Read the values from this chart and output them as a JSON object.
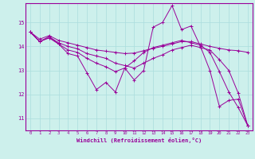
{
  "xlabel": "Windchill (Refroidissement éolien,°C)",
  "bg_color": "#cdf0ec",
  "line_color": "#990099",
  "grid_color": "#aadddd",
  "xlim": [
    -0.5,
    23.5
  ],
  "ylim": [
    10.5,
    15.8
  ],
  "yticks": [
    11,
    12,
    13,
    14,
    15
  ],
  "xticks": [
    0,
    1,
    2,
    3,
    4,
    5,
    6,
    7,
    8,
    9,
    10,
    11,
    12,
    13,
    14,
    15,
    16,
    17,
    18,
    19,
    20,
    21,
    22,
    23
  ],
  "series": [
    [
      14.6,
      14.2,
      14.4,
      14.1,
      13.7,
      13.6,
      12.9,
      12.2,
      12.5,
      12.1,
      13.1,
      12.6,
      13.0,
      14.8,
      15.0,
      15.7,
      14.7,
      14.85,
      14.0,
      13.0,
      11.5,
      11.75,
      11.8,
      10.7
    ],
    [
      14.6,
      14.2,
      14.35,
      14.1,
      13.85,
      13.75,
      13.5,
      13.3,
      13.15,
      12.95,
      13.1,
      13.4,
      13.75,
      13.95,
      14.05,
      14.15,
      14.25,
      14.15,
      14.05,
      13.75,
      12.95,
      12.1,
      11.45,
      10.7
    ],
    [
      14.6,
      14.3,
      14.45,
      14.25,
      14.15,
      14.05,
      13.95,
      13.85,
      13.8,
      13.75,
      13.7,
      13.72,
      13.82,
      13.92,
      14.0,
      14.1,
      14.2,
      14.2,
      14.1,
      14.0,
      13.92,
      13.85,
      13.82,
      13.75
    ],
    [
      14.6,
      14.2,
      14.4,
      14.15,
      14.0,
      13.9,
      13.7,
      13.6,
      13.5,
      13.3,
      13.2,
      13.1,
      13.3,
      13.5,
      13.65,
      13.85,
      13.95,
      14.05,
      13.95,
      13.85,
      13.45,
      13.0,
      12.05,
      10.7
    ]
  ]
}
